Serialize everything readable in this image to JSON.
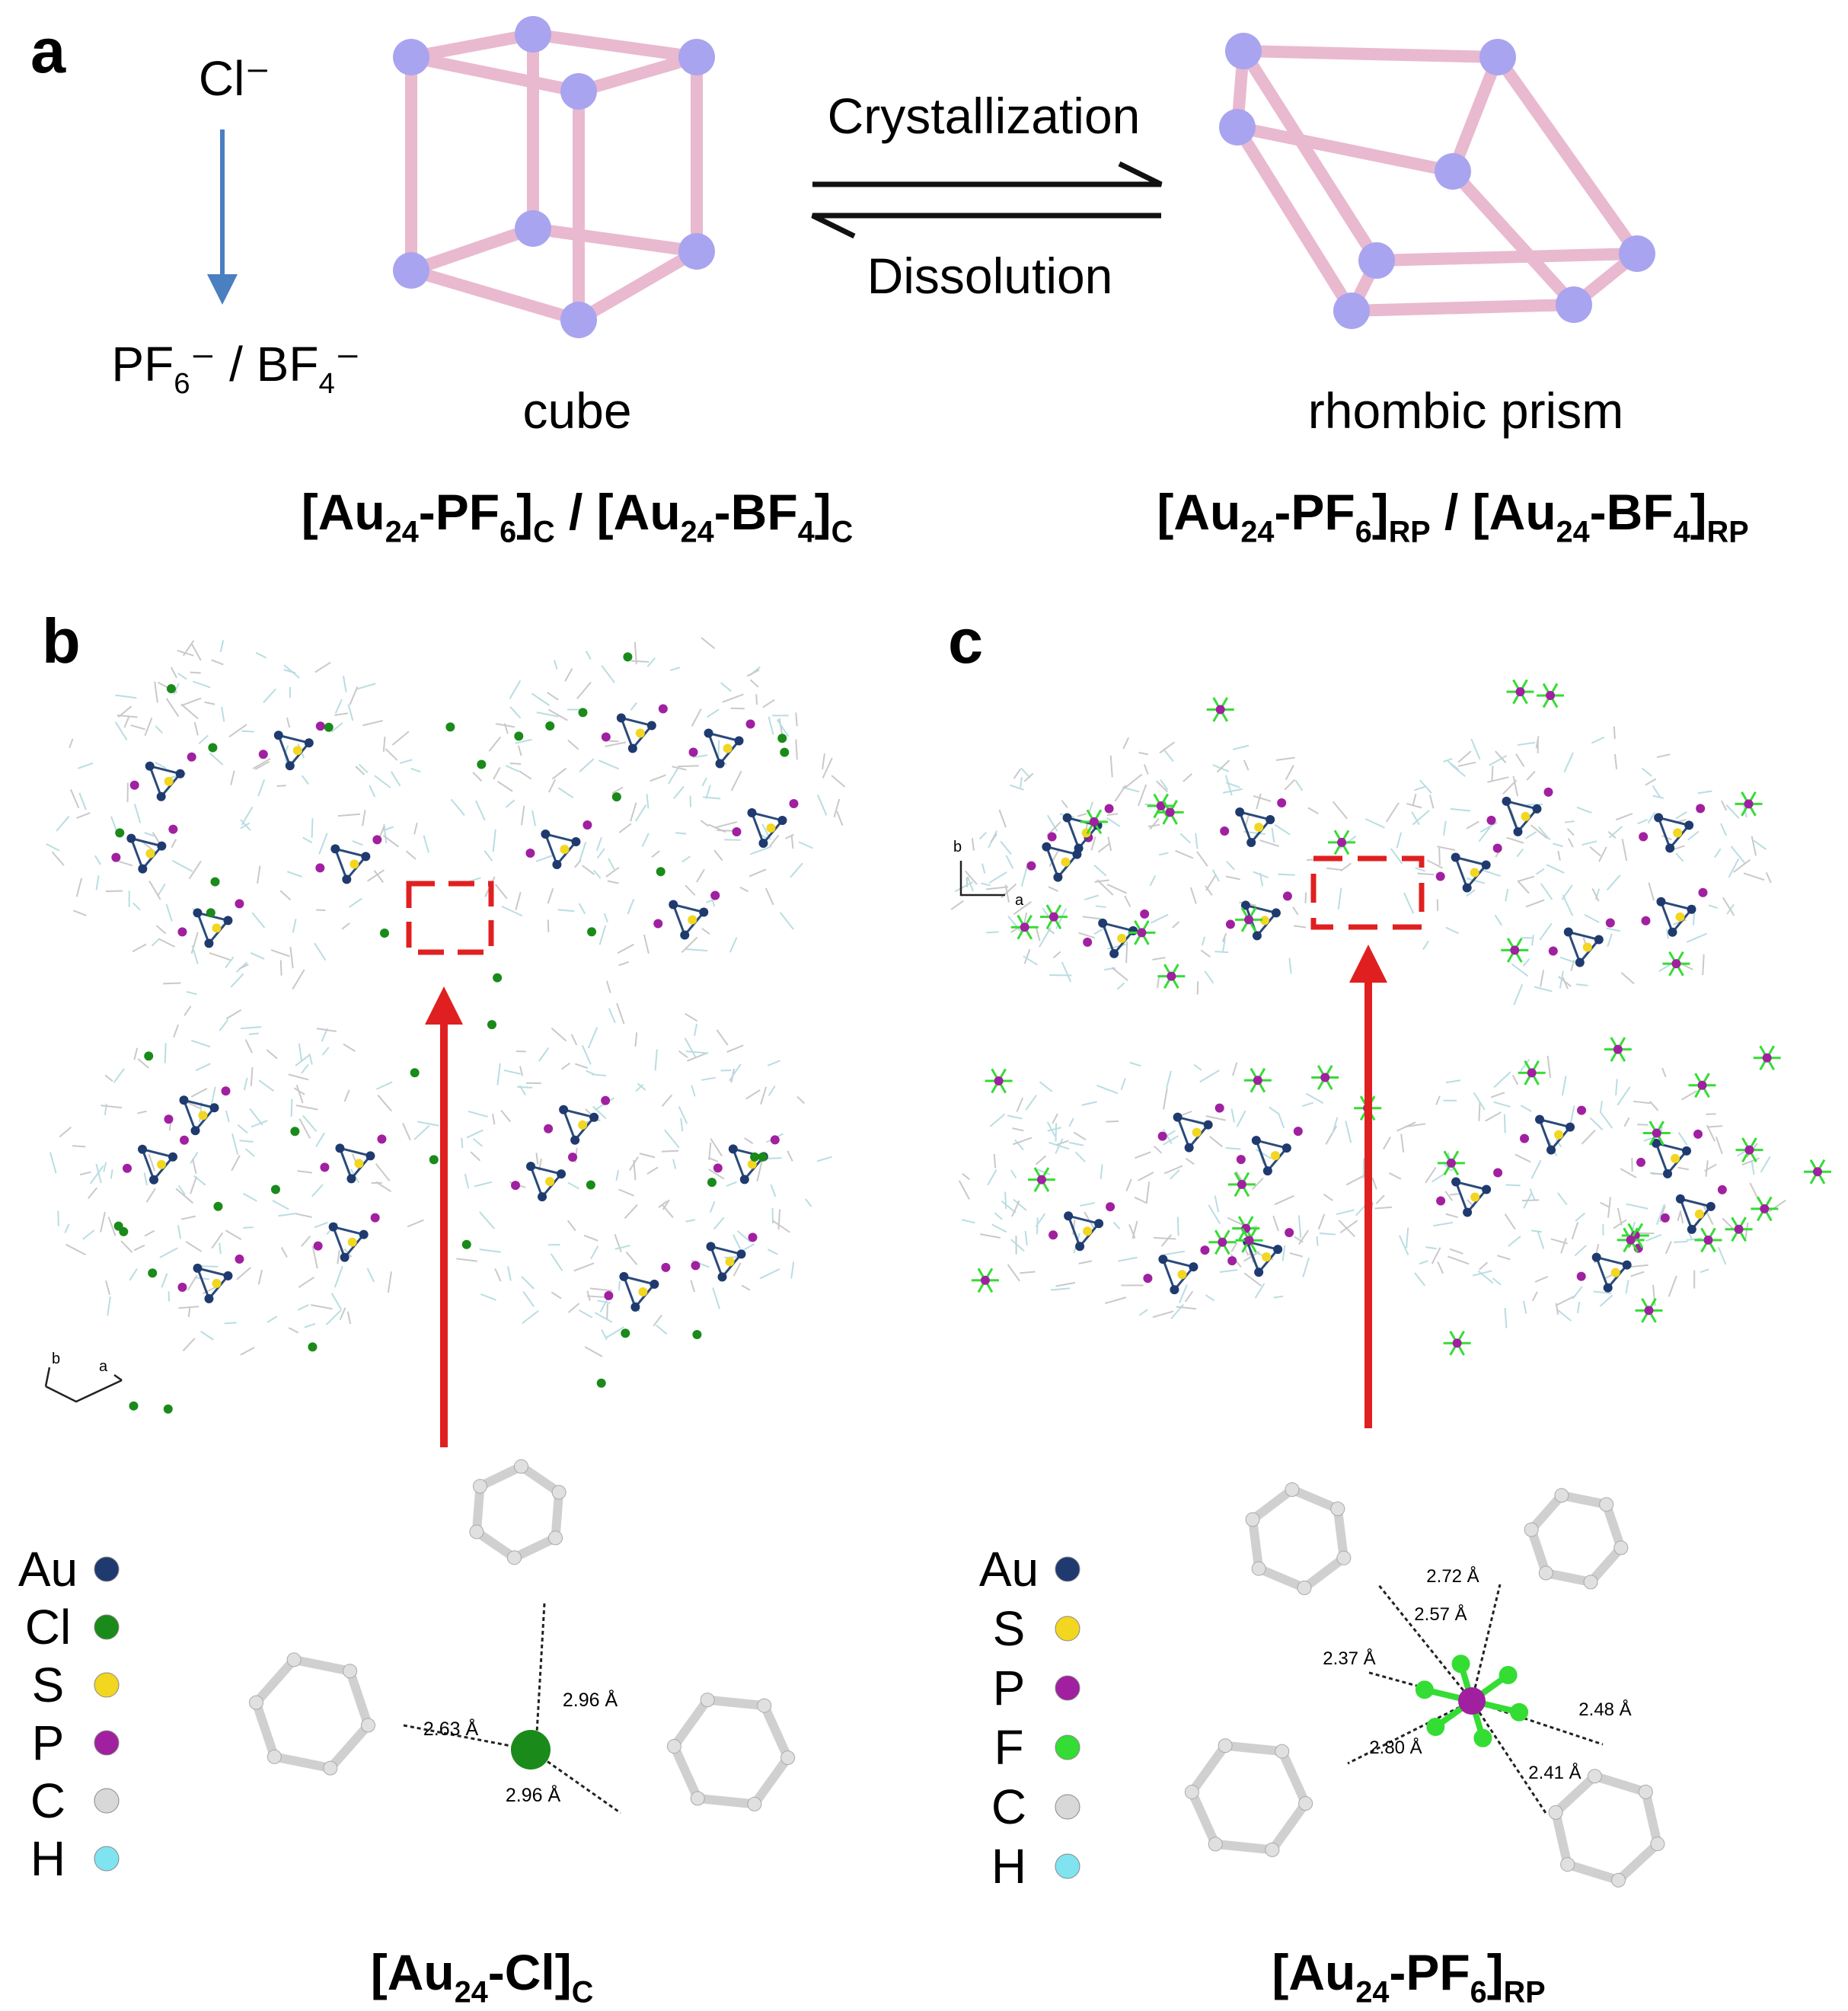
{
  "panel_a": {
    "label": "a",
    "anion_from": "Cl⁻",
    "anion_to": [
      "PF",
      "6",
      "⁻ / BF",
      "4",
      "⁻"
    ],
    "cube_label": "cube",
    "forward": "Crystallization",
    "backward": "Dissolution",
    "prism_label": "rhombic prism",
    "cube_formula": [
      "[Au",
      "24",
      "-PF",
      "6",
      "]",
      "C",
      " / [Au",
      "24",
      "-BF",
      "4",
      "]",
      "C"
    ],
    "prism_formula": [
      "[Au",
      "24",
      "-PF",
      "6",
      "]",
      "RP",
      " / [Au",
      "24",
      "-BF",
      "4",
      "]",
      "RP"
    ]
  },
  "panel_b": {
    "label": "b",
    "axes": [
      "b",
      "a"
    ],
    "legend": [
      {
        "name": "Au",
        "color": "#1f3a6e"
      },
      {
        "name": "Cl",
        "color": "#1a8a1a"
      },
      {
        "name": "S",
        "color": "#f2d620"
      },
      {
        "name": "P",
        "color": "#a020a0"
      },
      {
        "name": "C",
        "color": "#d8d8d8"
      },
      {
        "name": "H",
        "color": "#7fe3f0"
      }
    ],
    "distances": [
      "2.63 Å",
      "2.96 Å",
      "2.96 Å"
    ],
    "formula": [
      "[Au",
      "24",
      "-Cl]",
      "C"
    ]
  },
  "panel_c": {
    "label": "c",
    "axes": [
      "b",
      "a"
    ],
    "legend": [
      {
        "name": "Au",
        "color": "#1f3a6e"
      },
      {
        "name": "S",
        "color": "#f2d620"
      },
      {
        "name": "P",
        "color": "#a020a0"
      },
      {
        "name": "F",
        "color": "#33dd33"
      },
      {
        "name": "C",
        "color": "#d8d8d8"
      },
      {
        "name": "H",
        "color": "#7fe3f0"
      }
    ],
    "distances": [
      "2.72 Å",
      "2.57 Å",
      "2.37 Å",
      "2.48 Å",
      "2.80 Å",
      "2.41 Å"
    ],
    "formula": [
      "[Au",
      "24",
      "-PF",
      "6",
      "]",
      "RP"
    ]
  }
}
